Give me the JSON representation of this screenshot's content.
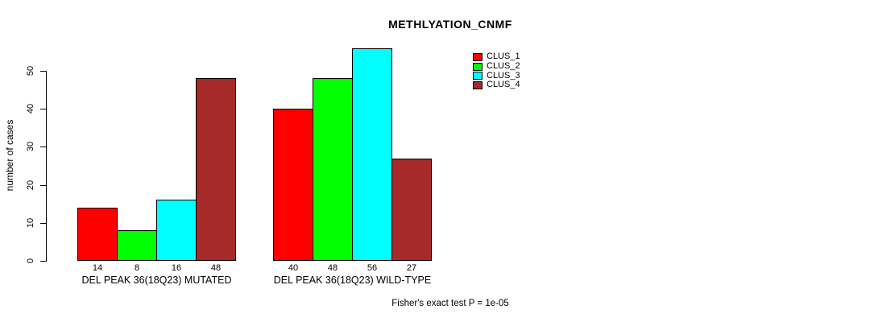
{
  "title": "METHLYATION_CNMF",
  "footnote": "Fisher's exact test P = 1e-05",
  "chart_data": {
    "type": "bar",
    "title": "METHLYATION_CNMF",
    "xlabel": "",
    "ylabel": "number of cases",
    "ylim": [
      0,
      56
    ],
    "yticks": [
      0,
      10,
      20,
      30,
      40,
      50
    ],
    "grid": false,
    "bar_borders": true,
    "show_value_labels": true,
    "legend_position": "top-right",
    "categories": [
      "DEL PEAK 36(18Q23) MUTATED",
      "DEL PEAK 36(18Q23) WILD-TYPE"
    ],
    "series": [
      {
        "name": "CLUS_1",
        "color": "#FF0000",
        "values": [
          14,
          40
        ]
      },
      {
        "name": "CLUS_2",
        "color": "#00FF00",
        "values": [
          8,
          48
        ]
      },
      {
        "name": "CLUS_3",
        "color": "#00FFFF",
        "values": [
          16,
          56
        ]
      },
      {
        "name": "CLUS_4",
        "color": "#A52A2A",
        "values": [
          48,
          27
        ]
      }
    ],
    "annotations": [
      "Fisher's exact test P = 1e-05"
    ]
  }
}
